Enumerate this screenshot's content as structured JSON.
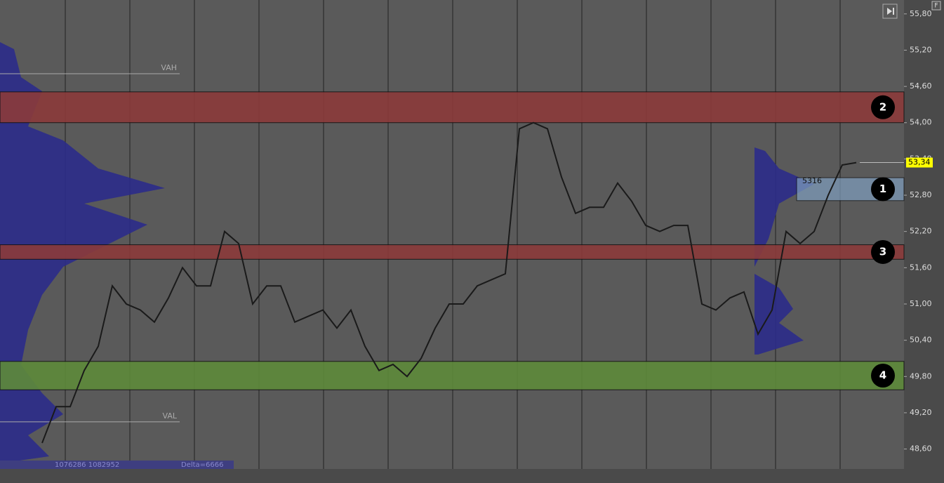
{
  "chart_data": {
    "type": "line",
    "values": [
      48.7,
      49.3,
      49.3,
      49.9,
      50.3,
      51.3,
      51.0,
      50.9,
      50.7,
      51.1,
      51.6,
      51.3,
      51.3,
      52.2,
      52.0,
      51.0,
      51.3,
      51.3,
      50.7,
      50.8,
      50.9,
      50.6,
      50.9,
      50.3,
      49.9,
      50.0,
      49.8,
      50.1,
      50.6,
      51.0,
      51.0,
      51.3,
      51.4,
      51.5,
      53.9,
      54.0,
      53.9,
      53.1,
      52.5,
      52.6,
      52.6,
      53.0,
      52.7,
      52.3,
      52.2,
      52.3,
      52.3,
      51.0,
      50.9,
      51.1,
      51.2,
      50.5,
      50.9,
      52.2,
      52.0,
      52.2,
      52.8,
      53.3,
      53.34
    ],
    "color": "#1a1a1a",
    "ylim": [
      48.27,
      56.03
    ],
    "yticks": [
      {
        "value": 55.8,
        "label": "55,80"
      },
      {
        "value": 55.2,
        "label": "55,20"
      },
      {
        "value": 54.6,
        "label": "54,60"
      },
      {
        "value": 54.0,
        "label": "54,00"
      },
      {
        "value": 53.4,
        "label": "53,40"
      },
      {
        "value": 52.8,
        "label": "52,80"
      },
      {
        "value": 52.2,
        "label": "52,20"
      },
      {
        "value": 51.6,
        "label": "51,60"
      },
      {
        "value": 51.0,
        "label": "51,00"
      },
      {
        "value": 50.4,
        "label": "50,40"
      },
      {
        "value": 49.8,
        "label": "49,80"
      },
      {
        "value": 49.2,
        "label": "49,20"
      },
      {
        "value": 48.6,
        "label": "48,60"
      }
    ],
    "zones": [
      {
        "label": "2",
        "low": 54.0,
        "high": 54.51,
        "color": "#8b3a3a"
      },
      {
        "label": "3",
        "low": 51.74,
        "high": 51.98,
        "color": "#8b3a3a"
      },
      {
        "label": "4",
        "low": 49.58,
        "high": 50.05,
        "color": "#5e8a3a"
      },
      {
        "label": "1",
        "low": 52.71,
        "high": 53.09,
        "color": "#7f9fbf"
      }
    ],
    "levels": [
      {
        "label": "VAH",
        "value": 54.81
      },
      {
        "label": "VAL",
        "value": 49.05
      }
    ],
    "last_price": {
      "value": 53.34,
      "label": "53,34"
    },
    "annotation": "5316",
    "footer_volume": "1076286 1082952",
    "footer_delta": "Delta=6666",
    "corner_button": "F"
  }
}
